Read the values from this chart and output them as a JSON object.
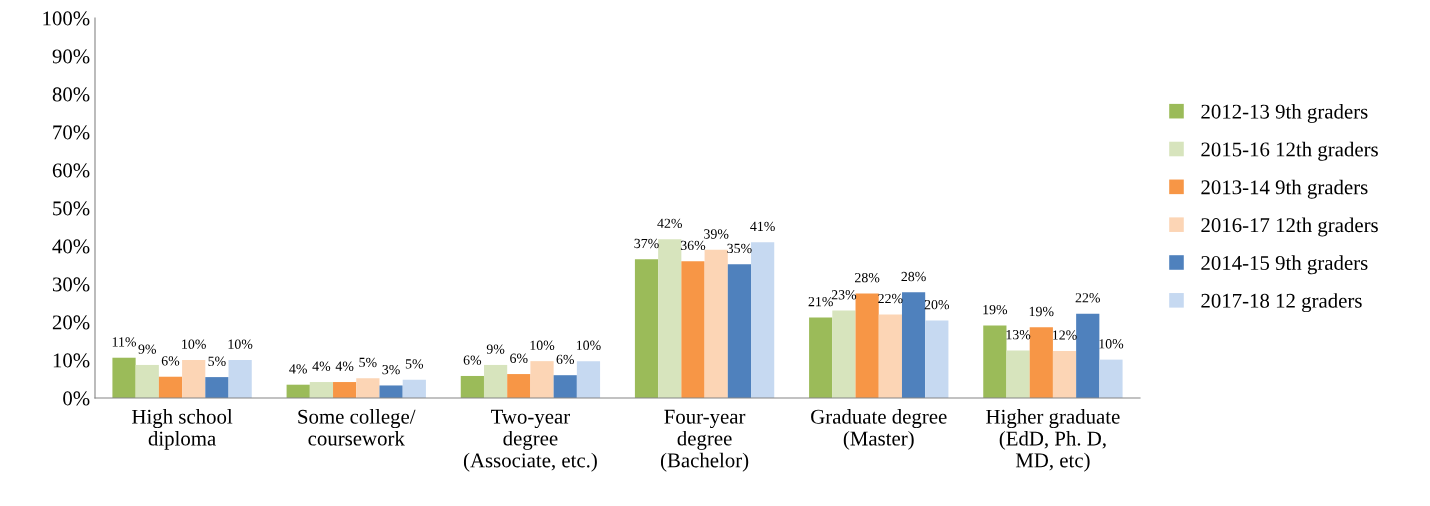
{
  "chart_data": {
    "type": "bar",
    "categories": [
      "High school\ndiploma",
      "Some college/\ncoursework",
      "Two-year\ndegree\n(Associate, etc.)",
      "Four-year\ndegree\n(Bachelor)",
      "Graduate degree\n(Master)",
      "Higher graduate\n(EdD, Ph. D,\nMD, etc)"
    ],
    "series": [
      {
        "name": "2012-13 9th graders",
        "color": "#9bbb59",
        "values": [
          10.6,
          3.5,
          5.8,
          36.5,
          21.2,
          19.1
        ],
        "value_labels": [
          "11%",
          "4%",
          "6%",
          "37%",
          "21%",
          "19%"
        ]
      },
      {
        "name": "2015-16 12th graders",
        "color": "#d7e4bd",
        "values": [
          8.7,
          4.2,
          8.7,
          41.8,
          23,
          12.5
        ],
        "value_labels": [
          "9%",
          "4%",
          "9%",
          "42%",
          "23%",
          "13%"
        ]
      },
      {
        "name": "2013-14 9th graders",
        "color": "#f79646",
        "values": [
          5.6,
          4.2,
          6.3,
          36,
          27.5,
          18.6
        ],
        "value_labels": [
          "6%",
          "4%",
          "6%",
          "36%",
          "28%",
          "19%"
        ]
      },
      {
        "name": "2016-17 12th graders",
        "color": "#fcd5b5",
        "values": [
          10,
          5.2,
          9.7,
          39,
          22,
          12.4
        ],
        "value_labels": [
          "10%",
          "5%",
          "10%",
          "39%",
          "22%",
          "12%"
        ]
      },
      {
        "name": "2014-15 9th graders",
        "color": "#4f81bd",
        "values": [
          5.5,
          3.3,
          6,
          35.2,
          27.8,
          22.2
        ],
        "value_labels": [
          "5%",
          "3%",
          "6%",
          "35%",
          "28%",
          "22%"
        ]
      },
      {
        "name": "2017-18 12 graders",
        "color": "#c6d9f1",
        "values": [
          10,
          4.8,
          9.7,
          41,
          20.4,
          10.1
        ],
        "value_labels": [
          "10%",
          "5%",
          "10%",
          "41%",
          "20%",
          "10%"
        ]
      }
    ],
    "ylim": [
      0,
      100
    ],
    "yticks": [
      {
        "value": 0,
        "label": "0%"
      },
      {
        "value": 10,
        "label": "10%"
      },
      {
        "value": 20,
        "label": "20%"
      },
      {
        "value": 30,
        "label": "30%"
      },
      {
        "value": 40,
        "label": "40%"
      },
      {
        "value": 50,
        "label": "50%"
      },
      {
        "value": 60,
        "label": "60%"
      },
      {
        "value": 70,
        "label": "70%"
      },
      {
        "value": 80,
        "label": "80%"
      },
      {
        "value": 90,
        "label": "90%"
      },
      {
        "value": 100,
        "label": "100%"
      }
    ],
    "grid": false,
    "legend": "right"
  }
}
